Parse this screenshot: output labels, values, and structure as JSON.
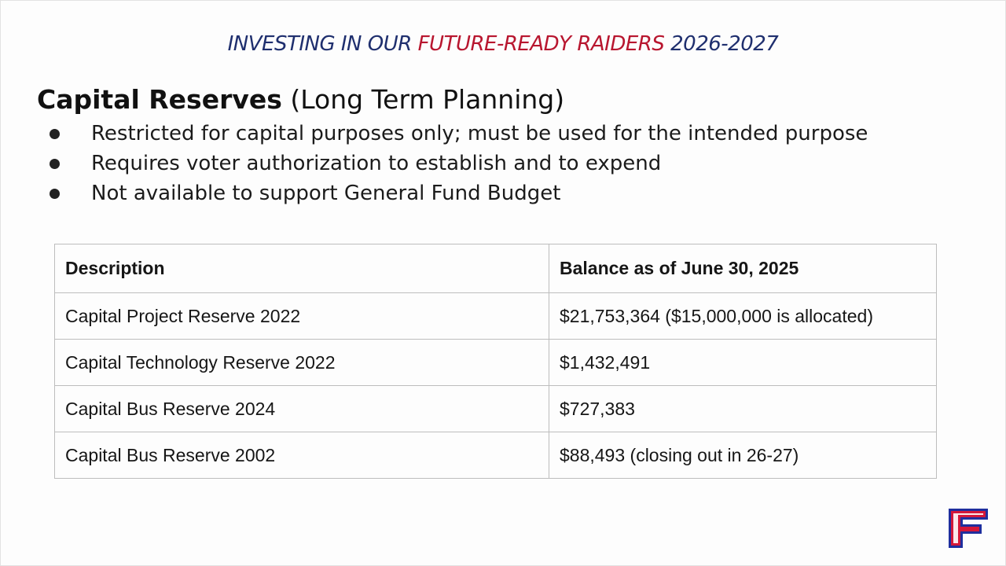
{
  "banner": {
    "part1": "INVESTING IN OUR ",
    "part2": "FUTURE-READY RAIDERS",
    "part3": " 2026-2027",
    "colors": {
      "blue": "#1f2f6e",
      "red": "#b8162f"
    }
  },
  "heading": {
    "strong": "Capital Reserves",
    "rest": " (Long Term Planning)"
  },
  "bullets": [
    "Restricted for capital purposes only; must be used for the intended purpose",
    "Requires voter authorization to establish and to expend",
    "Not available to support General Fund Budget"
  ],
  "table": {
    "headers": [
      "Description",
      "Balance as of June 30, 2025"
    ],
    "rows": [
      [
        "Capital Project Reserve 2022",
        "$21,753,364 ($15,000,000 is allocated)"
      ],
      [
        "Capital Technology Reserve 2022",
        "$1,432,491"
      ],
      [
        "Capital Bus Reserve 2024",
        "$727,383"
      ],
      [
        "Capital Bus Reserve 2002",
        "$88,493 (closing out in 26-27)"
      ]
    ]
  },
  "logo": {
    "icon": "letter-f-logo",
    "letter": "F"
  }
}
